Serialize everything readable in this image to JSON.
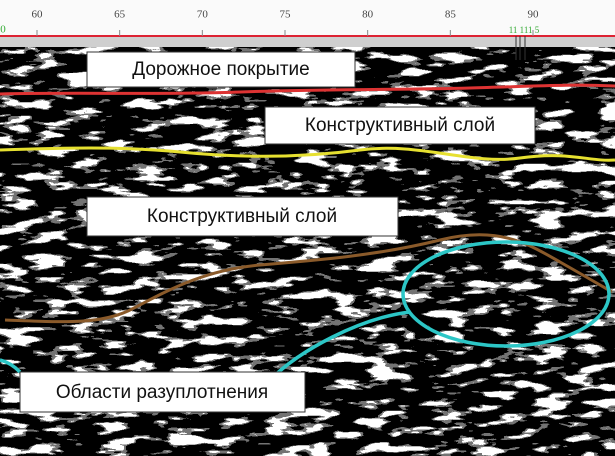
{
  "ruler": {
    "edge_label": "0",
    "ticks": [
      "60",
      "65",
      "70",
      "75",
      "80",
      "85",
      "90"
    ],
    "marker_label": "11 111 5"
  },
  "annotations": [
    "Дорожное покрытие",
    "Конструктивный слой",
    "Конструктивный слой",
    "Области разуплотнения"
  ]
}
